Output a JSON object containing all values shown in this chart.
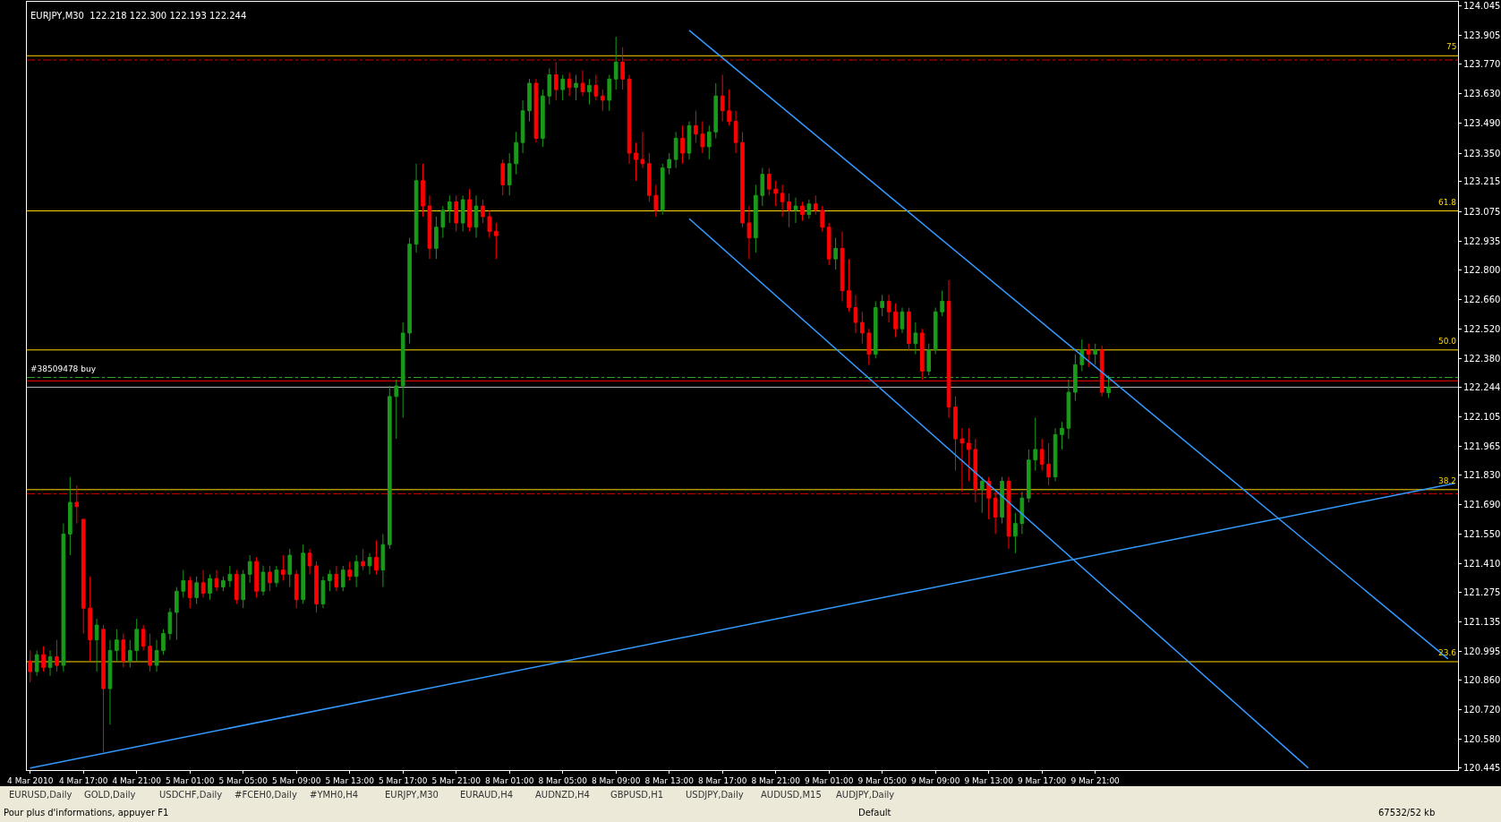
{
  "chart_data": {
    "type": "candlestick",
    "title": "EURJPY,M30  122.218 122.300 122.193 122.244",
    "categories": [
      "4 Mar 2010",
      null,
      null,
      null,
      null,
      null,
      null,
      null,
      "4 Mar 17:00",
      null,
      null,
      null,
      null,
      null,
      null,
      null,
      "4 Mar 21:00",
      null,
      null,
      null,
      null,
      null,
      null,
      null,
      "5 Mar 01:00",
      null,
      null,
      null,
      null,
      null,
      null,
      null,
      "5 Mar 05:00",
      null,
      null,
      null,
      null,
      null,
      null,
      null,
      "5 Mar 09:00",
      null,
      null,
      null,
      null,
      null,
      null,
      null,
      "5 Mar 13:00",
      null,
      null,
      null,
      null,
      null,
      null,
      null,
      "5 Mar 17:00",
      null,
      null,
      null,
      null,
      null,
      null,
      null,
      "5 Mar 21:00",
      null,
      null,
      null,
      null,
      null,
      null,
      null,
      "8 Mar 01:00",
      null,
      null,
      null,
      null,
      null,
      null,
      null,
      "8 Mar 05:00",
      null,
      null,
      null,
      null,
      null,
      null,
      null,
      "8 Mar 09:00",
      null,
      null,
      null,
      null,
      null,
      null,
      null,
      "8 Mar 13:00",
      null,
      null,
      null,
      null,
      null,
      null,
      null,
      "8 Mar 17:00",
      null,
      null,
      null,
      null,
      null,
      null,
      null,
      "8 Mar 21:00",
      null,
      null,
      null,
      null,
      null,
      null,
      null,
      "9 Mar 01:00",
      null,
      null,
      null,
      null,
      null,
      null,
      null,
      "9 Mar 05:00",
      null,
      null,
      null,
      null,
      null,
      null,
      null,
      "9 Mar 09:00",
      null,
      null,
      null,
      null,
      null,
      null,
      null,
      "9 Mar 13:00",
      null,
      null,
      null,
      null,
      null,
      null,
      null,
      "9 Mar 17:00",
      null,
      null,
      null,
      null,
      null,
      null,
      null,
      "9 Mar 21:00",
      null,
      null,
      null,
      null,
      null,
      null,
      null,
      null,
      null,
      null,
      null,
      null,
      null,
      null,
      null,
      null,
      null,
      null,
      null,
      null,
      null,
      null,
      null,
      null,
      null,
      null,
      null,
      null,
      null,
      null,
      null,
      null,
      null,
      null,
      null,
      null,
      null,
      null,
      null,
      null,
      null,
      null,
      null,
      null,
      null,
      null,
      null,
      null,
      null,
      null,
      null,
      null,
      null,
      null
    ],
    "ohlc": [
      [
        120.95,
        121.0,
        120.85,
        120.9
      ],
      [
        120.9,
        121.0,
        120.88,
        120.98
      ],
      [
        120.98,
        121.02,
        120.9,
        120.92
      ],
      [
        120.92,
        121.0,
        120.88,
        120.97
      ],
      [
        120.97,
        121.05,
        120.9,
        120.93
      ],
      [
        120.93,
        121.6,
        120.9,
        121.55
      ],
      [
        121.55,
        121.82,
        121.45,
        121.7
      ],
      [
        121.7,
        121.78,
        121.6,
        121.68
      ],
      [
        121.62,
        121.62,
        121.08,
        121.2
      ],
      [
        121.2,
        121.35,
        120.95,
        121.05
      ],
      [
        121.05,
        121.15,
        120.9,
        121.12
      ],
      [
        121.1,
        121.12,
        120.52,
        120.82
      ],
      [
        120.82,
        121.05,
        120.65,
        121.0
      ],
      [
        121.0,
        121.1,
        120.95,
        121.05
      ],
      [
        121.05,
        121.08,
        120.92,
        120.95
      ],
      [
        120.95,
        121.05,
        120.92,
        121.0
      ],
      [
        121.0,
        121.15,
        120.95,
        121.1
      ],
      [
        121.1,
        121.12,
        121.0,
        121.02
      ],
      [
        121.02,
        121.08,
        120.9,
        120.93
      ],
      [
        120.93,
        121.05,
        120.9,
        121.0
      ],
      [
        121.0,
        121.1,
        120.98,
        121.08
      ],
      [
        121.08,
        121.2,
        121.05,
        121.18
      ],
      [
        121.18,
        121.3,
        121.05,
        121.28
      ],
      [
        121.28,
        121.38,
        121.25,
        121.33
      ],
      [
        121.33,
        121.35,
        121.2,
        121.25
      ],
      [
        121.25,
        121.35,
        121.22,
        121.32
      ],
      [
        121.32,
        121.38,
        121.25,
        121.27
      ],
      [
        121.27,
        121.36,
        121.24,
        121.34
      ],
      [
        121.34,
        121.38,
        121.28,
        121.3
      ],
      [
        121.3,
        121.35,
        121.28,
        121.33
      ],
      [
        121.33,
        121.4,
        121.3,
        121.36
      ],
      [
        121.36,
        121.38,
        121.22,
        121.24
      ],
      [
        121.24,
        121.38,
        121.2,
        121.36
      ],
      [
        121.36,
        121.45,
        121.32,
        121.42
      ],
      [
        121.42,
        121.44,
        121.25,
        121.28
      ],
      [
        121.28,
        121.4,
        121.26,
        121.37
      ],
      [
        121.37,
        121.4,
        121.28,
        121.32
      ],
      [
        121.32,
        121.4,
        121.3,
        121.38
      ],
      [
        121.38,
        121.45,
        121.33,
        121.36
      ],
      [
        121.36,
        121.48,
        121.3,
        121.45
      ],
      [
        121.36,
        121.38,
        121.2,
        121.24
      ],
      [
        121.24,
        121.5,
        121.22,
        121.46
      ],
      [
        121.46,
        121.48,
        121.36,
        121.4
      ],
      [
        121.4,
        121.42,
        121.18,
        121.22
      ],
      [
        121.22,
        121.35,
        121.2,
        121.33
      ],
      [
        121.33,
        121.38,
        121.28,
        121.36
      ],
      [
        121.36,
        121.4,
        121.28,
        121.3
      ],
      [
        121.3,
        121.4,
        121.28,
        121.38
      ],
      [
        121.38,
        121.42,
        121.33,
        121.35
      ],
      [
        121.35,
        121.45,
        121.3,
        121.42
      ],
      [
        121.42,
        121.48,
        121.38,
        121.4
      ],
      [
        121.4,
        121.46,
        121.36,
        121.44
      ],
      [
        121.44,
        121.52,
        121.36,
        121.38
      ],
      [
        121.38,
        121.55,
        121.3,
        121.5
      ],
      [
        121.5,
        122.25,
        121.48,
        122.2
      ],
      [
        122.2,
        122.28,
        122.0,
        122.25
      ],
      [
        122.25,
        122.55,
        122.1,
        122.5
      ],
      [
        122.5,
        122.95,
        122.45,
        122.92
      ],
      [
        122.92,
        123.3,
        122.88,
        123.22
      ],
      [
        123.22,
        123.3,
        123.05,
        123.1
      ],
      [
        123.1,
        123.15,
        122.85,
        122.9
      ],
      [
        122.9,
        123.05,
        122.85,
        123.0
      ],
      [
        123.0,
        123.1,
        122.95,
        123.08
      ],
      [
        123.08,
        123.15,
        123.02,
        123.12
      ],
      [
        123.12,
        123.15,
        122.98,
        123.02
      ],
      [
        123.02,
        123.15,
        122.98,
        123.13
      ],
      [
        123.13,
        123.18,
        122.98,
        123.0
      ],
      [
        123.0,
        123.15,
        122.95,
        123.1
      ],
      [
        123.1,
        123.13,
        123.02,
        123.05
      ],
      [
        123.05,
        123.08,
        122.95,
        122.98
      ],
      [
        122.98,
        123.02,
        122.85,
        122.96
      ],
      [
        123.3,
        123.32,
        123.15,
        123.2
      ],
      [
        123.2,
        123.35,
        123.15,
        123.3
      ],
      [
        123.3,
        123.45,
        123.25,
        123.4
      ],
      [
        123.4,
        123.6,
        123.35,
        123.55
      ],
      [
        123.55,
        123.7,
        123.5,
        123.68
      ],
      [
        123.68,
        123.7,
        123.4,
        123.42
      ],
      [
        123.42,
        123.65,
        123.38,
        123.62
      ],
      [
        123.62,
        123.75,
        123.58,
        123.72
      ],
      [
        123.72,
        123.78,
        123.6,
        123.65
      ],
      [
        123.65,
        123.72,
        123.6,
        123.7
      ],
      [
        123.7,
        123.73,
        123.62,
        123.66
      ],
      [
        123.66,
        123.72,
        123.6,
        123.68
      ],
      [
        123.68,
        123.74,
        123.62,
        123.64
      ],
      [
        123.64,
        123.7,
        123.58,
        123.67
      ],
      [
        123.67,
        123.72,
        123.6,
        123.62
      ],
      [
        123.62,
        123.65,
        123.55,
        123.6
      ],
      [
        123.6,
        123.72,
        123.55,
        123.7
      ],
      [
        123.7,
        123.9,
        123.65,
        123.78
      ],
      [
        123.78,
        123.85,
        123.65,
        123.7
      ],
      [
        123.7,
        123.72,
        123.3,
        123.35
      ],
      [
        123.35,
        123.4,
        123.22,
        123.32
      ],
      [
        123.32,
        123.45,
        123.28,
        123.3
      ],
      [
        123.3,
        123.35,
        123.12,
        123.15
      ],
      [
        123.15,
        123.2,
        123.05,
        123.08
      ],
      [
        123.08,
        123.3,
        123.06,
        123.28
      ],
      [
        123.28,
        123.35,
        123.25,
        123.32
      ],
      [
        123.32,
        123.45,
        123.28,
        123.42
      ],
      [
        123.42,
        123.48,
        123.3,
        123.35
      ],
      [
        123.35,
        123.5,
        123.32,
        123.48
      ],
      [
        123.48,
        123.55,
        123.4,
        123.44
      ],
      [
        123.44,
        123.5,
        123.35,
        123.38
      ],
      [
        123.38,
        123.48,
        123.32,
        123.45
      ],
      [
        123.45,
        123.68,
        123.42,
        123.62
      ],
      [
        123.62,
        123.72,
        123.5,
        123.55
      ],
      [
        123.55,
        123.65,
        123.48,
        123.5
      ],
      [
        123.5,
        123.55,
        123.35,
        123.4
      ],
      [
        123.4,
        123.45,
        123.0,
        123.02
      ],
      [
        123.02,
        123.1,
        122.85,
        122.95
      ],
      [
        122.95,
        123.2,
        122.88,
        123.15
      ],
      [
        123.15,
        123.28,
        123.1,
        123.25
      ],
      [
        123.25,
        123.28,
        123.15,
        123.18
      ],
      [
        123.18,
        123.22,
        123.1,
        123.16
      ],
      [
        123.16,
        123.2,
        123.05,
        123.12
      ],
      [
        123.12,
        123.16,
        123.0,
        123.08
      ],
      [
        123.08,
        123.14,
        123.02,
        123.1
      ],
      [
        123.1,
        123.12,
        123.03,
        123.06
      ],
      [
        123.06,
        123.13,
        123.04,
        123.11
      ],
      [
        123.11,
        123.15,
        123.06,
        123.08
      ],
      [
        123.08,
        123.1,
        122.98,
        123.0
      ],
      [
        123.0,
        123.02,
        122.82,
        122.85
      ],
      [
        122.85,
        122.95,
        122.8,
        122.9
      ],
      [
        122.9,
        122.98,
        122.65,
        122.7
      ],
      [
        122.7,
        122.85,
        122.6,
        122.62
      ],
      [
        122.62,
        122.68,
        122.5,
        122.55
      ],
      [
        122.55,
        122.6,
        122.45,
        122.5
      ],
      [
        122.5,
        122.52,
        122.35,
        122.4
      ],
      [
        122.4,
        122.65,
        122.38,
        122.62
      ],
      [
        122.62,
        122.68,
        122.58,
        122.65
      ],
      [
        122.65,
        122.68,
        122.55,
        122.6
      ],
      [
        122.6,
        122.64,
        122.48,
        122.52
      ],
      [
        122.52,
        122.62,
        122.5,
        122.6
      ],
      [
        122.6,
        122.62,
        122.42,
        122.45
      ],
      [
        122.45,
        122.55,
        122.4,
        122.5
      ],
      [
        122.5,
        122.52,
        122.28,
        122.32
      ],
      [
        122.32,
        122.45,
        122.3,
        122.42
      ],
      [
        122.42,
        122.62,
        122.4,
        122.6
      ],
      [
        122.6,
        122.7,
        122.58,
        122.65
      ],
      [
        122.65,
        122.75,
        122.1,
        122.15
      ],
      [
        122.15,
        122.2,
        121.85,
        122.0
      ],
      [
        122.0,
        122.05,
        121.75,
        121.98
      ],
      [
        121.98,
        122.05,
        121.8,
        121.95
      ],
      [
        121.95,
        122.0,
        121.7,
        121.76
      ],
      [
        121.76,
        121.82,
        121.65,
        121.8
      ],
      [
        121.8,
        121.82,
        121.62,
        121.72
      ],
      [
        121.72,
        121.75,
        121.55,
        121.63
      ],
      [
        121.63,
        121.82,
        121.6,
        121.8
      ],
      [
        121.8,
        121.82,
        121.48,
        121.54
      ],
      [
        121.54,
        121.65,
        121.46,
        121.6
      ],
      [
        121.6,
        121.75,
        121.55,
        121.72
      ],
      [
        121.72,
        121.95,
        121.7,
        121.9
      ],
      [
        121.9,
        122.1,
        121.85,
        121.95
      ],
      [
        121.95,
        122.0,
        121.85,
        121.88
      ],
      [
        121.88,
        121.98,
        121.78,
        121.82
      ],
      [
        121.82,
        122.05,
        121.8,
        122.02
      ],
      [
        122.02,
        122.08,
        121.95,
        122.05
      ],
      [
        122.05,
        122.28,
        122.0,
        122.22
      ],
      [
        122.22,
        122.4,
        122.18,
        122.35
      ],
      [
        122.35,
        122.47,
        122.32,
        122.42
      ],
      [
        122.42,
        122.45,
        122.34,
        122.4
      ],
      [
        122.4,
        122.45,
        122.35,
        122.42
      ],
      [
        122.42,
        122.44,
        122.2,
        122.22
      ],
      [
        122.218,
        122.3,
        122.193,
        122.244
      ],
      null,
      null,
      null,
      null,
      null,
      null,
      null,
      null,
      null,
      null,
      null,
      null,
      null,
      null,
      null,
      null,
      null,
      null,
      null,
      null,
      null,
      null,
      null,
      null,
      null,
      null,
      null,
      null,
      null,
      null,
      null,
      null,
      null,
      null,
      null,
      null,
      null,
      null,
      null,
      null,
      null,
      null,
      null,
      null,
      null,
      null,
      null,
      null,
      null,
      null,
      null,
      null
    ],
    "colors": [
      "#ff0000",
      "#1a9a1a",
      "#ff0000",
      "#1a9a1a",
      "#ff0000",
      "#1a9a1a",
      "#1a9a1a",
      "#ff0000",
      "#ff0000",
      "#ff0000",
      "#1a9a1a",
      "#ff0000",
      "#1a9a1a",
      "#1a9a1a",
      "#ff0000",
      "#1a9a1a",
      "#1a9a1a",
      "#ff0000",
      "#ff0000",
      "#1a9a1a",
      "#1a9a1a",
      "#1a9a1a",
      "#1a9a1a",
      "#1a9a1a",
      "#ff0000",
      "#1a9a1a",
      "#ff0000",
      "#1a9a1a",
      "#ff0000",
      "#1a9a1a",
      "#1a9a1a",
      "#ff0000",
      "#1a9a1a",
      "#1a9a1a",
      "#ff0000",
      "#1a9a1a",
      "#ff0000",
      "#1a9a1a",
      "#ff0000",
      "#1a9a1a",
      "#ff0000",
      "#1a9a1a",
      "#ff0000",
      "#ff0000",
      "#1a9a1a",
      "#1a9a1a",
      "#ff0000",
      "#1a9a1a",
      "#ff0000",
      "#1a9a1a",
      "#ff0000",
      "#1a9a1a",
      "#ff0000",
      "#1a9a1a",
      "#1a9a1a",
      "#1a9a1a",
      "#1a9a1a",
      "#1a9a1a",
      "#1a9a1a",
      "#ff0000",
      "#ff0000",
      "#1a9a1a",
      "#1a9a1a",
      "#1a9a1a",
      "#ff0000",
      "#1a9a1a",
      "#ff0000",
      "#1a9a1a",
      "#ff0000",
      "#ff0000",
      "#ff0000",
      "#ff0000",
      "#1a9a1a",
      "#1a9a1a",
      "#1a9a1a",
      "#1a9a1a",
      "#ff0000",
      "#1a9a1a",
      "#1a9a1a",
      "#ff0000",
      "#1a9a1a",
      "#ff0000",
      "#1a9a1a",
      "#ff0000",
      "#1a9a1a",
      "#ff0000",
      "#ff0000",
      "#1a9a1a",
      "#1a9a1a",
      "#ff0000",
      "#ff0000",
      "#ff0000",
      "#ff0000",
      "#ff0000",
      "#ff0000",
      "#1a9a1a",
      "#1a9a1a",
      "#1a9a1a",
      "#ff0000",
      "#1a9a1a",
      "#ff0000",
      "#ff0000",
      "#1a9a1a",
      "#1a9a1a",
      "#ff0000",
      "#ff0000",
      "#ff0000",
      "#ff0000",
      "#ff0000",
      "#1a9a1a",
      "#1a9a1a",
      "#ff0000",
      "#ff0000",
      "#ff0000",
      "#ff0000",
      "#1a9a1a",
      "#ff0000",
      "#1a9a1a",
      "#ff0000",
      "#ff0000",
      "#ff0000",
      "#1a9a1a",
      "#ff0000",
      "#ff0000",
      "#ff0000",
      "#ff0000",
      "#ff0000",
      "#1a9a1a",
      "#1a9a1a",
      "#ff0000",
      "#ff0000",
      "#1a9a1a",
      "#ff0000",
      "#1a9a1a",
      "#ff0000",
      "#1a9a1a",
      "#1a9a1a",
      "#1a9a1a",
      "#ff0000",
      "#ff0000",
      "#ff0000",
      "#ff0000",
      "#ff0000",
      "#1a9a1a",
      "#ff0000",
      "#ff0000",
      "#1a9a1a",
      "#ff0000",
      "#1a9a1a",
      "#1a9a1a",
      "#1a9a1a",
      "#1a9a1a",
      "#ff0000",
      "#ff0000",
      "#1a9a1a",
      "#1a9a1a",
      "#1a9a1a",
      "#1a9a1a",
      "#1a9a1a",
      "#ff0000",
      "#1a9a1a",
      "#ff0000",
      "#1a9a1a",
      null,
      null,
      null,
      null,
      null,
      null,
      null,
      null,
      null,
      null,
      null,
      null,
      null,
      null,
      null,
      null,
      null,
      null,
      null,
      null,
      null,
      null,
      null,
      null,
      null,
      null,
      null,
      null,
      null,
      null,
      null,
      null,
      null,
      null,
      null,
      null,
      null,
      null,
      null,
      null,
      null,
      null,
      null,
      null,
      null,
      null,
      null,
      null,
      null,
      null,
      null,
      null
    ],
    "series": [
      {
        "type": "line",
        "color": "#3399ff",
        "values": [
          120.445,
          null,
          null,
          null,
          null,
          null,
          null,
          null,
          null,
          null,
          null,
          null,
          null,
          null,
          null,
          null,
          null,
          null,
          null,
          null,
          null,
          null,
          null,
          null,
          null,
          null,
          null,
          null,
          null,
          null,
          null,
          null,
          null,
          null,
          null,
          null,
          null,
          null,
          null,
          null,
          null,
          null,
          null,
          null,
          null,
          null,
          null,
          null,
          null,
          null,
          null,
          null,
          null,
          null,
          null,
          null,
          null,
          null,
          null,
          null,
          null,
          null,
          null,
          null,
          null,
          null,
          null,
          null,
          null,
          null,
          null,
          null,
          null,
          null,
          null,
          null,
          null,
          null,
          null,
          null,
          null,
          null,
          null,
          null,
          null,
          null,
          null,
          null,
          null,
          null,
          null,
          null,
          null,
          null,
          null,
          null,
          null,
          null,
          null,
          null,
          null,
          null,
          null,
          null,
          null,
          null,
          null,
          null,
          null,
          null,
          null,
          null,
          null,
          null,
          null,
          null,
          null,
          null,
          null,
          null,
          null,
          null,
          null,
          null,
          null,
          null,
          null,
          null,
          null,
          null,
          null,
          null,
          null,
          null,
          null,
          null,
          null,
          null,
          null,
          null,
          null,
          null,
          null,
          null,
          null,
          null,
          null,
          null,
          null,
          null,
          null,
          null,
          null,
          null,
          null,
          null,
          null,
          null,
          null,
          null,
          null,
          null,
          null,
          null,
          null,
          null,
          null,
          null,
          null,
          null,
          null,
          null,
          null,
          null,
          null,
          null,
          null,
          null,
          null,
          null,
          null,
          null,
          null,
          null,
          null,
          null,
          null,
          null,
          null,
          null,
          null,
          null,
          null,
          null,
          null,
          null,
          null,
          null,
          null,
          null,
          null,
          null,
          null,
          null,
          null,
          null,
          null,
          null,
          null,
          null,
          null,
          null,
          null,
          null,
          121.79
        ]
      },
      {
        "type": "line",
        "color": "#3399ff",
        "values": [
          null,
          null,
          null,
          null,
          null,
          null,
          null,
          null,
          null,
          null,
          null,
          null,
          null,
          null,
          null,
          null,
          null,
          null,
          null,
          null,
          null,
          null,
          null,
          null,
          null,
          null,
          null,
          null,
          null,
          null,
          null,
          null,
          null,
          null,
          null,
          null,
          null,
          null,
          null,
          null,
          null,
          null,
          null,
          null,
          null,
          null,
          null,
          null,
          null,
          null,
          null,
          null,
          null,
          null,
          null,
          null,
          null,
          null,
          null,
          null,
          null,
          null,
          null,
          null,
          null,
          null,
          null,
          null,
          null,
          null,
          null,
          null,
          null,
          null,
          null,
          null,
          null,
          null,
          null,
          null,
          null,
          null,
          null,
          null,
          null,
          null,
          null,
          null,
          null,
          null,
          null,
          null,
          null,
          null,
          null,
          null,
          null,
          null,
          null,
          123.93,
          null,
          null,
          null,
          null,
          null,
          null,
          null,
          null,
          null,
          null,
          null,
          null,
          null,
          null,
          null,
          null,
          null,
          null,
          null,
          null,
          null,
          null,
          null,
          null,
          null,
          null,
          null,
          null,
          null,
          null,
          null,
          null,
          null,
          null,
          null,
          null,
          null,
          null,
          null,
          null,
          null,
          null,
          null,
          null,
          null,
          null,
          null,
          null,
          null,
          null,
          null,
          null,
          null,
          null,
          null,
          null,
          null,
          null,
          null,
          null,
          null,
          null,
          null,
          null,
          null,
          null,
          null,
          null,
          null,
          null,
          null,
          null,
          null,
          null,
          null,
          null,
          null,
          null,
          null,
          null,
          null,
          null,
          null,
          null,
          null,
          null,
          null,
          null,
          null,
          null,
          null,
          null,
          null,
          null,
          null,
          null,
          null,
          null,
          null,
          null,
          null,
          null,
          null,
          null,
          null,
          null,
          null,
          null,
          null,
          null,
          null,
          null,
          null,
          120.96,
          null
        ]
      },
      {
        "type": "line",
        "color": "#3399ff",
        "values": [
          null,
          null,
          null,
          null,
          null,
          null,
          null,
          null,
          null,
          null,
          null,
          null,
          null,
          null,
          null,
          null,
          null,
          null,
          null,
          null,
          null,
          null,
          null,
          null,
          null,
          null,
          null,
          null,
          null,
          null,
          null,
          null,
          null,
          null,
          null,
          null,
          null,
          null,
          null,
          null,
          null,
          null,
          null,
          null,
          null,
          null,
          null,
          null,
          null,
          null,
          null,
          null,
          null,
          null,
          null,
          null,
          null,
          null,
          null,
          null,
          null,
          null,
          null,
          null,
          null,
          null,
          null,
          null,
          null,
          null,
          null,
          null,
          null,
          null,
          null,
          null,
          null,
          null,
          null,
          null,
          null,
          null,
          null,
          null,
          null,
          null,
          null,
          null,
          null,
          null,
          null,
          null,
          null,
          null,
          null,
          null,
          null,
          null,
          null,
          123.04,
          null,
          null,
          null,
          null,
          null,
          null,
          null,
          null,
          null,
          null,
          null,
          null,
          null,
          null,
          null,
          null,
          null,
          null,
          null,
          null,
          null,
          null,
          null,
          null,
          null,
          null,
          null,
          null,
          null,
          null,
          null,
          null,
          null,
          null,
          null,
          null,
          null,
          null,
          null,
          null,
          null,
          null,
          null,
          null,
          null,
          null,
          null,
          null,
          null,
          null,
          null,
          null,
          null,
          null,
          null,
          null,
          null,
          null,
          null,
          null,
          null,
          null,
          null,
          null,
          null,
          null,
          null,
          null,
          null,
          null,
          null,
          null,
          null,
          null,
          null,
          null,
          null,
          null,
          null,
          null,
          null,
          null,
          null,
          null,
          null,
          null,
          null,
          null,
          null,
          null,
          null,
          null,
          120.445,
          null,
          null,
          null,
          null,
          null,
          null,
          null,
          null,
          null,
          null,
          null,
          null,
          null,
          null,
          null,
          null,
          null,
          null,
          null,
          null,
          null,
          null
        ]
      }
    ],
    "ylim": [
      120.435,
      124.065
    ],
    "yticks": [
      124.045,
      123.905,
      {
        "value": 123.77,
        "label": "123.770"
      },
      {
        "value": 123.63,
        "label": "123.630"
      },
      {
        "value": 123.49,
        "label": "123.490"
      },
      {
        "value": 123.35,
        "label": "123.350"
      },
      123.215,
      123.075,
      122.935,
      {
        "value": 122.8,
        "label": "122.800"
      },
      {
        "value": 122.66,
        "label": "122.660"
      },
      {
        "value": 122.52,
        "label": "122.520"
      },
      {
        "value": 122.38,
        "label": "122.380"
      },
      122.244,
      122.105,
      121.965,
      {
        "value": 121.83,
        "label": "121.830"
      },
      {
        "value": 121.69,
        "label": "121.690"
      },
      {
        "value": 121.55,
        "label": "121.550"
      },
      {
        "value": 121.41,
        "label": "121.410"
      },
      121.275,
      121.135,
      120.995,
      {
        "value": 120.86,
        "label": "120.860"
      },
      {
        "value": 120.72,
        "label": "120.720"
      },
      {
        "value": 120.58,
        "label": "120.580"
      },
      120.445
    ],
    "ref_lines": [
      {
        "axis": "y",
        "value": 123.81,
        "color": "#ffd700",
        "line_style": "solid"
      },
      {
        "axis": "y",
        "value": 123.79,
        "color": "#cc0000",
        "line_style": "dashed"
      },
      {
        "axis": "y",
        "value": 123.077,
        "color": "#ffd700",
        "line_style": "solid"
      },
      {
        "axis": "y",
        "value": 122.42,
        "color": "#ffd700",
        "line_style": "solid"
      },
      {
        "axis": "y",
        "value": 122.29,
        "label": "#38509478 buy",
        "color": "#33aa33",
        "line_style": "dashed"
      },
      {
        "axis": "y",
        "value": 122.274,
        "color": "#ff0000",
        "line_style": "solid"
      },
      {
        "axis": "y",
        "value": 122.244,
        "color": "#c0c0c0",
        "line_style": "solid"
      },
      {
        "axis": "y",
        "value": 121.76,
        "color": "#ffd700",
        "line_style": "solid"
      },
      {
        "axis": "y",
        "value": 121.74,
        "color": "#cc0000",
        "line_style": "dashed"
      },
      {
        "axis": "y",
        "value": 120.947,
        "color": "#ffd700",
        "line_style": "solid"
      }
    ],
    "annotations": [
      {
        "text": "75",
        "y": 123.81
      },
      {
        "text": "61.8",
        "y": 123.077
      },
      {
        "text": "50.0",
        "y": 122.42
      },
      {
        "text": "38.2",
        "y": 121.76
      },
      {
        "text": "23.6",
        "y": 120.947
      },
      "EURUSD,Daily",
      "GOLD,Daily",
      "USDCHF,Daily",
      "#FCEH0,Daily",
      "#YMH0,H4",
      "EURJPY,M30",
      "EURAUD,H4",
      "AUDNZD,H4",
      "GBPUSD,H1",
      "USDJPY,Daily",
      "AUDUSD,M15",
      "AUDJPY,Daily",
      "Pour plus d'informations, appuyer F1",
      "Default",
      "67532/52 kb"
    ],
    "grid": false
  }
}
